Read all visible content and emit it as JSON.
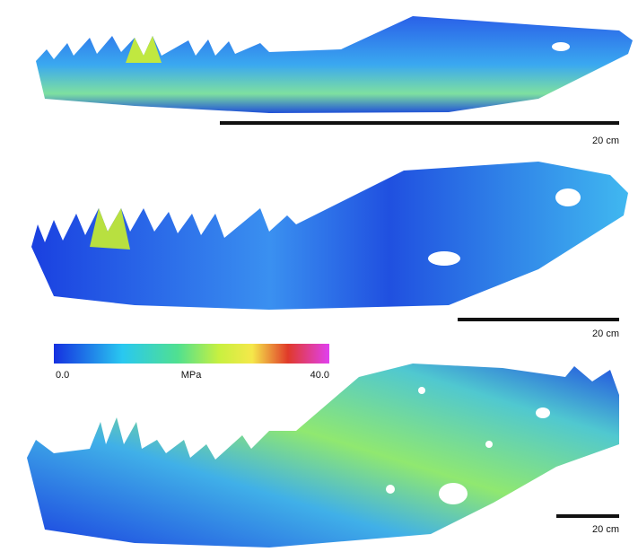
{
  "panels": [
    {
      "scale_label": "20 cm"
    },
    {
      "scale_label": "20 cm"
    },
    {
      "scale_label": "20 cm"
    }
  ],
  "colorbar": {
    "min_label": "0.0",
    "unit": "MPa",
    "max_label": "40.0"
  }
}
